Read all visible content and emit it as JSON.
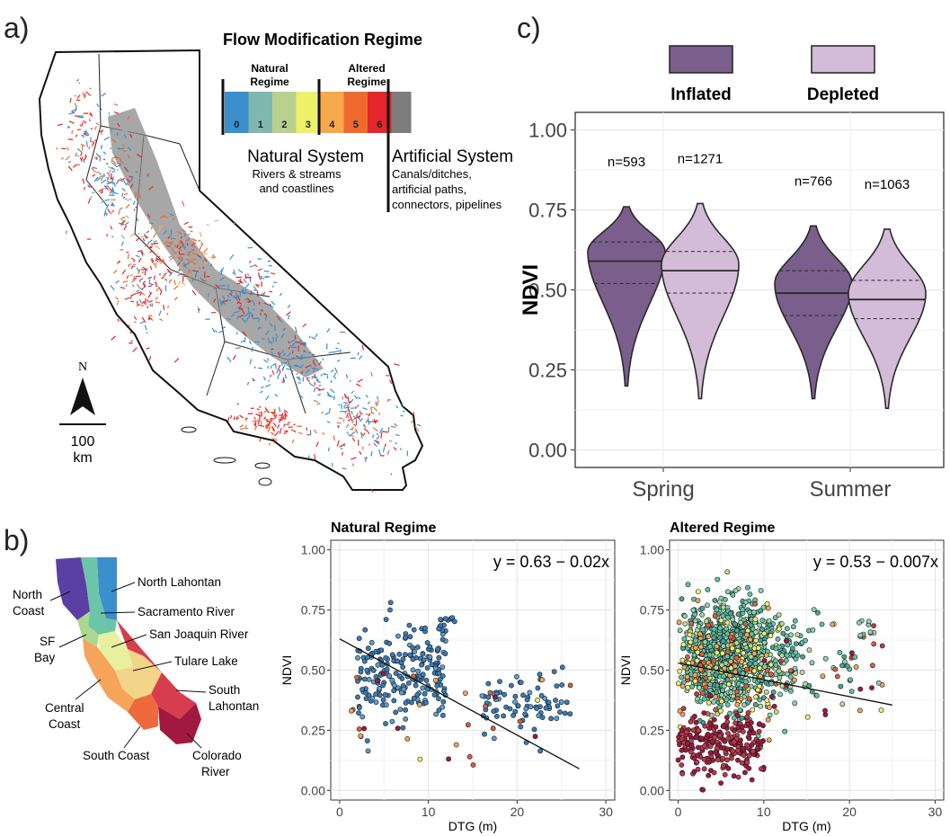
{
  "panel_labels": {
    "a": "a)",
    "b": "b)",
    "c": "c)"
  },
  "legend_a": {
    "title": "Flow Modification Regime",
    "natural_regime": "Natural Regime",
    "altered_regime": "Altered Regime",
    "classes": [
      {
        "label": "0",
        "color": "#3a8fcc"
      },
      {
        "label": "1",
        "color": "#7fb8ae"
      },
      {
        "label": "2",
        "color": "#b9d08f"
      },
      {
        "label": "3",
        "color": "#eef06a"
      },
      {
        "label": "4",
        "color": "#f7a84b"
      },
      {
        "label": "5",
        "color": "#ee6a2d"
      },
      {
        "label": "6",
        "color": "#e3262b"
      }
    ],
    "artificial_color": "#7d7d7d",
    "natural_system_title": "Natural System",
    "natural_system_lines": [
      "Rivers & streams",
      "and coastlines"
    ],
    "artificial_system_title": "Artificial System",
    "artificial_system_lines": [
      "Canals/ditches,",
      "artificial paths,",
      "connectors, pipelines"
    ]
  },
  "north_arrow": {
    "label": "N"
  },
  "scale_bar": {
    "value": "100",
    "unit": "km"
  },
  "regions_b": {
    "labels": [
      "North Coast",
      "North Lahontan",
      "Sacramento River",
      "San Joaquin River",
      "SF Bay",
      "Tulare Lake",
      "South Lahontan",
      "Central Coast",
      "South Coast",
      "Colorado River"
    ],
    "colors": {
      "north_coast": "#5b3fa5",
      "north_lahontan": "#3a8fcc",
      "sacramento": "#6cc5a8",
      "sf_bay": "#a9d98e",
      "san_joaquin": "#e8f0a0",
      "tulare": "#f3d58a",
      "central_coast": "#f5a45a",
      "south_coast": "#ee6a3d",
      "south_lahontan": "#d63d4e",
      "colorado": "#a3183f"
    }
  },
  "chart_data": [
    {
      "type": "violin",
      "panel": "c",
      "ylabel": "NDVI",
      "ylim": [
        0,
        1
      ],
      "yticks": [
        "0.00",
        "0.25",
        "0.50",
        "0.75",
        "1.00"
      ],
      "categories": [
        "Spring",
        "Summer"
      ],
      "legend": [
        {
          "name": "Inflated",
          "color": "#7a5f8c"
        },
        {
          "name": "Depleted",
          "color": "#d3bcd8"
        }
      ],
      "violins": [
        {
          "category": "Spring",
          "group": "Inflated",
          "n_label": "n=593",
          "min": 0.2,
          "max": 0.76,
          "q1": 0.52,
          "median": 0.59,
          "q3": 0.65,
          "mode": 0.62
        },
        {
          "category": "Spring",
          "group": "Depleted",
          "n_label": "n=1271",
          "min": 0.16,
          "max": 0.77,
          "q1": 0.49,
          "median": 0.56,
          "q3": 0.62,
          "mode": 0.58
        },
        {
          "category": "Summer",
          "group": "Inflated",
          "n_label": "n=766",
          "min": 0.16,
          "max": 0.7,
          "q1": 0.42,
          "median": 0.49,
          "q3": 0.56,
          "mode": 0.52
        },
        {
          "category": "Summer",
          "group": "Depleted",
          "n_label": "n=1063",
          "min": 0.13,
          "max": 0.69,
          "q1": 0.41,
          "median": 0.47,
          "q3": 0.53,
          "mode": 0.49
        }
      ]
    },
    {
      "type": "scatter",
      "panel": "b",
      "title": "Natural Regime",
      "xlabel": "DTG (m)",
      "ylabel": "NDVI",
      "xlim": [
        -1,
        31
      ],
      "ylim": [
        -0.04,
        1.04
      ],
      "xticks": [
        "0",
        "10",
        "20",
        "30"
      ],
      "yticks": [
        "0.00",
        "0.25",
        "0.50",
        "0.75",
        "1.00"
      ],
      "equation": "y = 0.63 − 0.02x",
      "fit": {
        "intercept": 0.63,
        "slope": -0.02,
        "x_range": [
          0,
          27
        ]
      }
    },
    {
      "type": "scatter",
      "panel": "b",
      "title": "Altered Regime",
      "xlabel": "DTG (m)",
      "ylabel": "NDVI",
      "xlim": [
        -1,
        31
      ],
      "ylim": [
        -0.04,
        1.04
      ],
      "xticks": [
        "0",
        "10",
        "20",
        "30"
      ],
      "yticks": [
        "0.00",
        "0.25",
        "0.50",
        "0.75",
        "1.00"
      ],
      "equation": "y = 0.53 − 0.007x",
      "fit": {
        "intercept": 0.53,
        "slope": -0.007,
        "x_range": [
          0,
          25
        ]
      }
    }
  ]
}
